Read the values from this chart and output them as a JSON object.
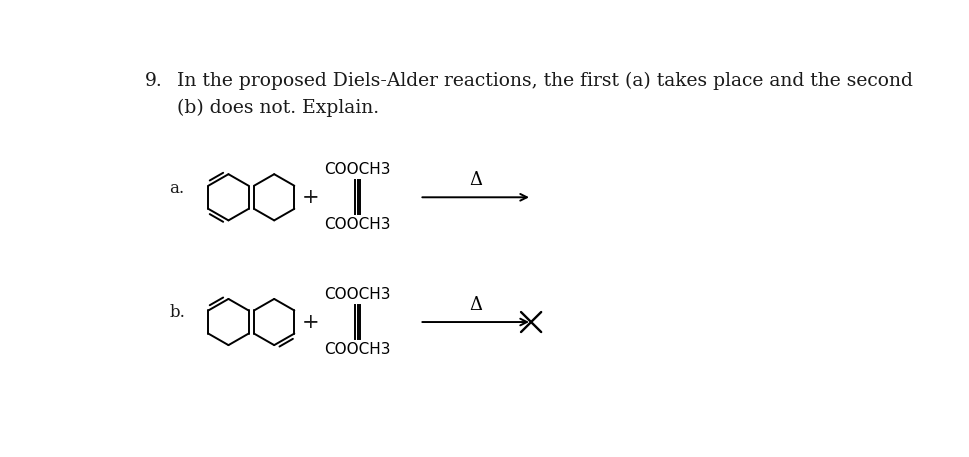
{
  "title_number": "9.",
  "title_text": "In the proposed Diels-Alder reactions, the first (a) takes place and the second",
  "title_text2": "(b) does not. Explain.",
  "label_a": "a.",
  "label_b": "b.",
  "cooch3": "COOCH3",
  "delta": "Δ",
  "bg_color": "#ffffff",
  "text_color": "#1a1a1a",
  "font_size_title": 13.5,
  "font_size_label": 12,
  "font_size_chem": 11,
  "lw": 1.4
}
